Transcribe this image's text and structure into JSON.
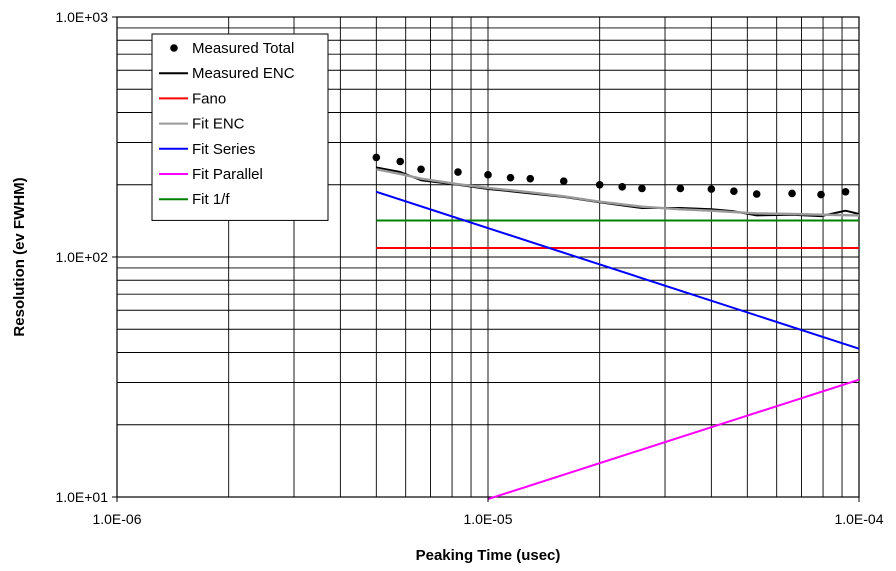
{
  "chart_data": {
    "type": "line",
    "xlabel": "Peaking Time (usec)",
    "ylabel": "Resolution (ev FWHM)",
    "xscale": "log",
    "yscale": "log",
    "xlim": [
      1e-06,
      0.0001
    ],
    "ylim": [
      10,
      1000
    ],
    "x_ticks": [
      {
        "value": 1e-06,
        "label": "1.0E-06"
      },
      {
        "value": 1e-05,
        "label": "1.0E-05"
      },
      {
        "value": 0.0001,
        "label": "1.0E-04"
      }
    ],
    "y_ticks": [
      {
        "value": 10,
        "label": "1.0E+01"
      },
      {
        "value": 100,
        "label": "1.0E+02"
      },
      {
        "value": 1000,
        "label": "1.0E+03"
      }
    ],
    "grid": true,
    "legend_position": "top-left",
    "series": [
      {
        "name": "Measured Total",
        "style": "markers",
        "color": "#000000",
        "x": [
          5e-06,
          5.8e-06,
          6.6e-06,
          8.3e-06,
          1e-05,
          1.15e-05,
          1.3e-05,
          1.6e-05,
          2e-05,
          2.3e-05,
          2.6e-05,
          3.3e-05,
          4e-05,
          4.6e-05,
          5.3e-05,
          6.6e-05,
          7.9e-05,
          9.2e-05
        ],
        "y": [
          260,
          250,
          232,
          226,
          220,
          214,
          212,
          207,
          200,
          196,
          193,
          193,
          192,
          188,
          183,
          184,
          182,
          187
        ]
      },
      {
        "name": "Measured ENC",
        "style": "line",
        "color": "#000000",
        "x": [
          5e-06,
          5.8e-06,
          6.6e-06,
          8.3e-06,
          1e-05,
          1.15e-05,
          1.3e-05,
          1.6e-05,
          2e-05,
          2.3e-05,
          2.6e-05,
          3.3e-05,
          4e-05,
          4.6e-05,
          5.3e-05,
          6.6e-05,
          7.9e-05,
          9.2e-05,
          0.0001
        ],
        "y": [
          236,
          226,
          209,
          200,
          192,
          188,
          184,
          178,
          169,
          164,
          160,
          160,
          158,
          155,
          149,
          150,
          148,
          156,
          151
        ]
      },
      {
        "name": "Fano",
        "style": "line",
        "color": "#ff0000",
        "x": [
          5e-06,
          0.0001
        ],
        "y": [
          109,
          109
        ]
      },
      {
        "name": "Fit ENC",
        "style": "line",
        "color": "#999999",
        "x": [
          5e-06,
          5.8e-06,
          6.6e-06,
          8.3e-06,
          1e-05,
          1.3e-05,
          1.6e-05,
          2e-05,
          2.6e-05,
          3.3e-05,
          4e-05,
          5.3e-05,
          6.6e-05,
          7.9e-05,
          0.0001
        ],
        "y": [
          232,
          222,
          212,
          201,
          194,
          186,
          179,
          170,
          162,
          158,
          156,
          152,
          151,
          150,
          149
        ]
      },
      {
        "name": "Fit Series",
        "style": "line",
        "color": "#0000ff",
        "x": [
          5e-06,
          0.0001
        ],
        "y": [
          187,
          41.5
        ]
      },
      {
        "name": "Fit Parallel",
        "style": "line",
        "color": "#ff00ff",
        "x": [
          1e-05,
          0.0001
        ],
        "y": [
          9.8,
          30.8
        ]
      },
      {
        "name": "Fit 1/f",
        "style": "line",
        "color": "#008000",
        "x": [
          5e-06,
          0.0001
        ],
        "y": [
          142,
          142
        ]
      }
    ]
  }
}
